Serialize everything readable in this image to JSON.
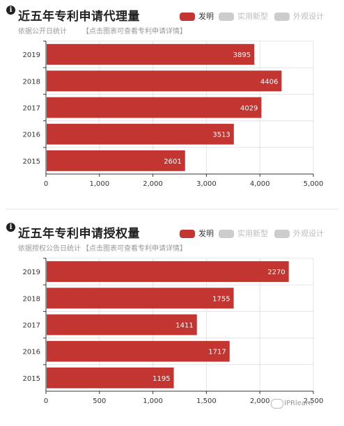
{
  "panels": [
    {
      "title": "近五年专利申请代理量",
      "subtitle": "依据公开日统计",
      "detail_link": "【点击图表可查看专利申请详情】",
      "legend": [
        {
          "label": "发明",
          "active": true,
          "color": "#c23531"
        },
        {
          "label": "实用新型",
          "active": false,
          "color": "#cccccc"
        },
        {
          "label": "外观设计",
          "active": false,
          "color": "#cccccc"
        }
      ]
    },
    {
      "title": "近五年专利申请授权量",
      "subtitle": "依据授权公告日统计",
      "detail_link": "【点击图表可查看专利申请详情】",
      "legend": [
        {
          "label": "发明",
          "active": true,
          "color": "#c23531"
        },
        {
          "label": "实用新型",
          "active": false,
          "color": "#cccccc"
        },
        {
          "label": "外观设计",
          "active": false,
          "color": "#cccccc"
        }
      ]
    }
  ],
  "chart_data": [
    {
      "type": "bar",
      "orientation": "horizontal",
      "title": "近五年专利申请代理量",
      "subtitle": "依据公开日统计",
      "categories": [
        "2019",
        "2018",
        "2017",
        "2016",
        "2015"
      ],
      "series": [
        {
          "name": "发明",
          "values": [
            3895,
            4406,
            4029,
            3513,
            2601
          ]
        }
      ],
      "xlim": [
        0,
        5000
      ],
      "xticks": [
        0,
        1000,
        2000,
        3000,
        4000,
        5000
      ],
      "xtick_labels": [
        "0",
        "1,000",
        "2,000",
        "3,000",
        "4,000",
        "5,000"
      ],
      "grid": true,
      "legend_position": "top-right",
      "bar_color": "#c23531"
    },
    {
      "type": "bar",
      "orientation": "horizontal",
      "title": "近五年专利申请授权量",
      "subtitle": "依据授权公告日统计",
      "categories": [
        "2019",
        "2018",
        "2017",
        "2016",
        "2015"
      ],
      "series": [
        {
          "name": "发明",
          "values": [
            2270,
            1755,
            1411,
            1717,
            1195
          ]
        }
      ],
      "xlim": [
        0,
        2500
      ],
      "xticks": [
        0,
        500,
        1000,
        1500,
        2000,
        2500
      ],
      "xtick_labels": [
        "0",
        "500",
        "1,000",
        "1,500",
        "2,000",
        "2,500"
      ],
      "grid": true,
      "legend_position": "top-right",
      "bar_color": "#c23531"
    }
  ],
  "watermark": "IPRlearn"
}
